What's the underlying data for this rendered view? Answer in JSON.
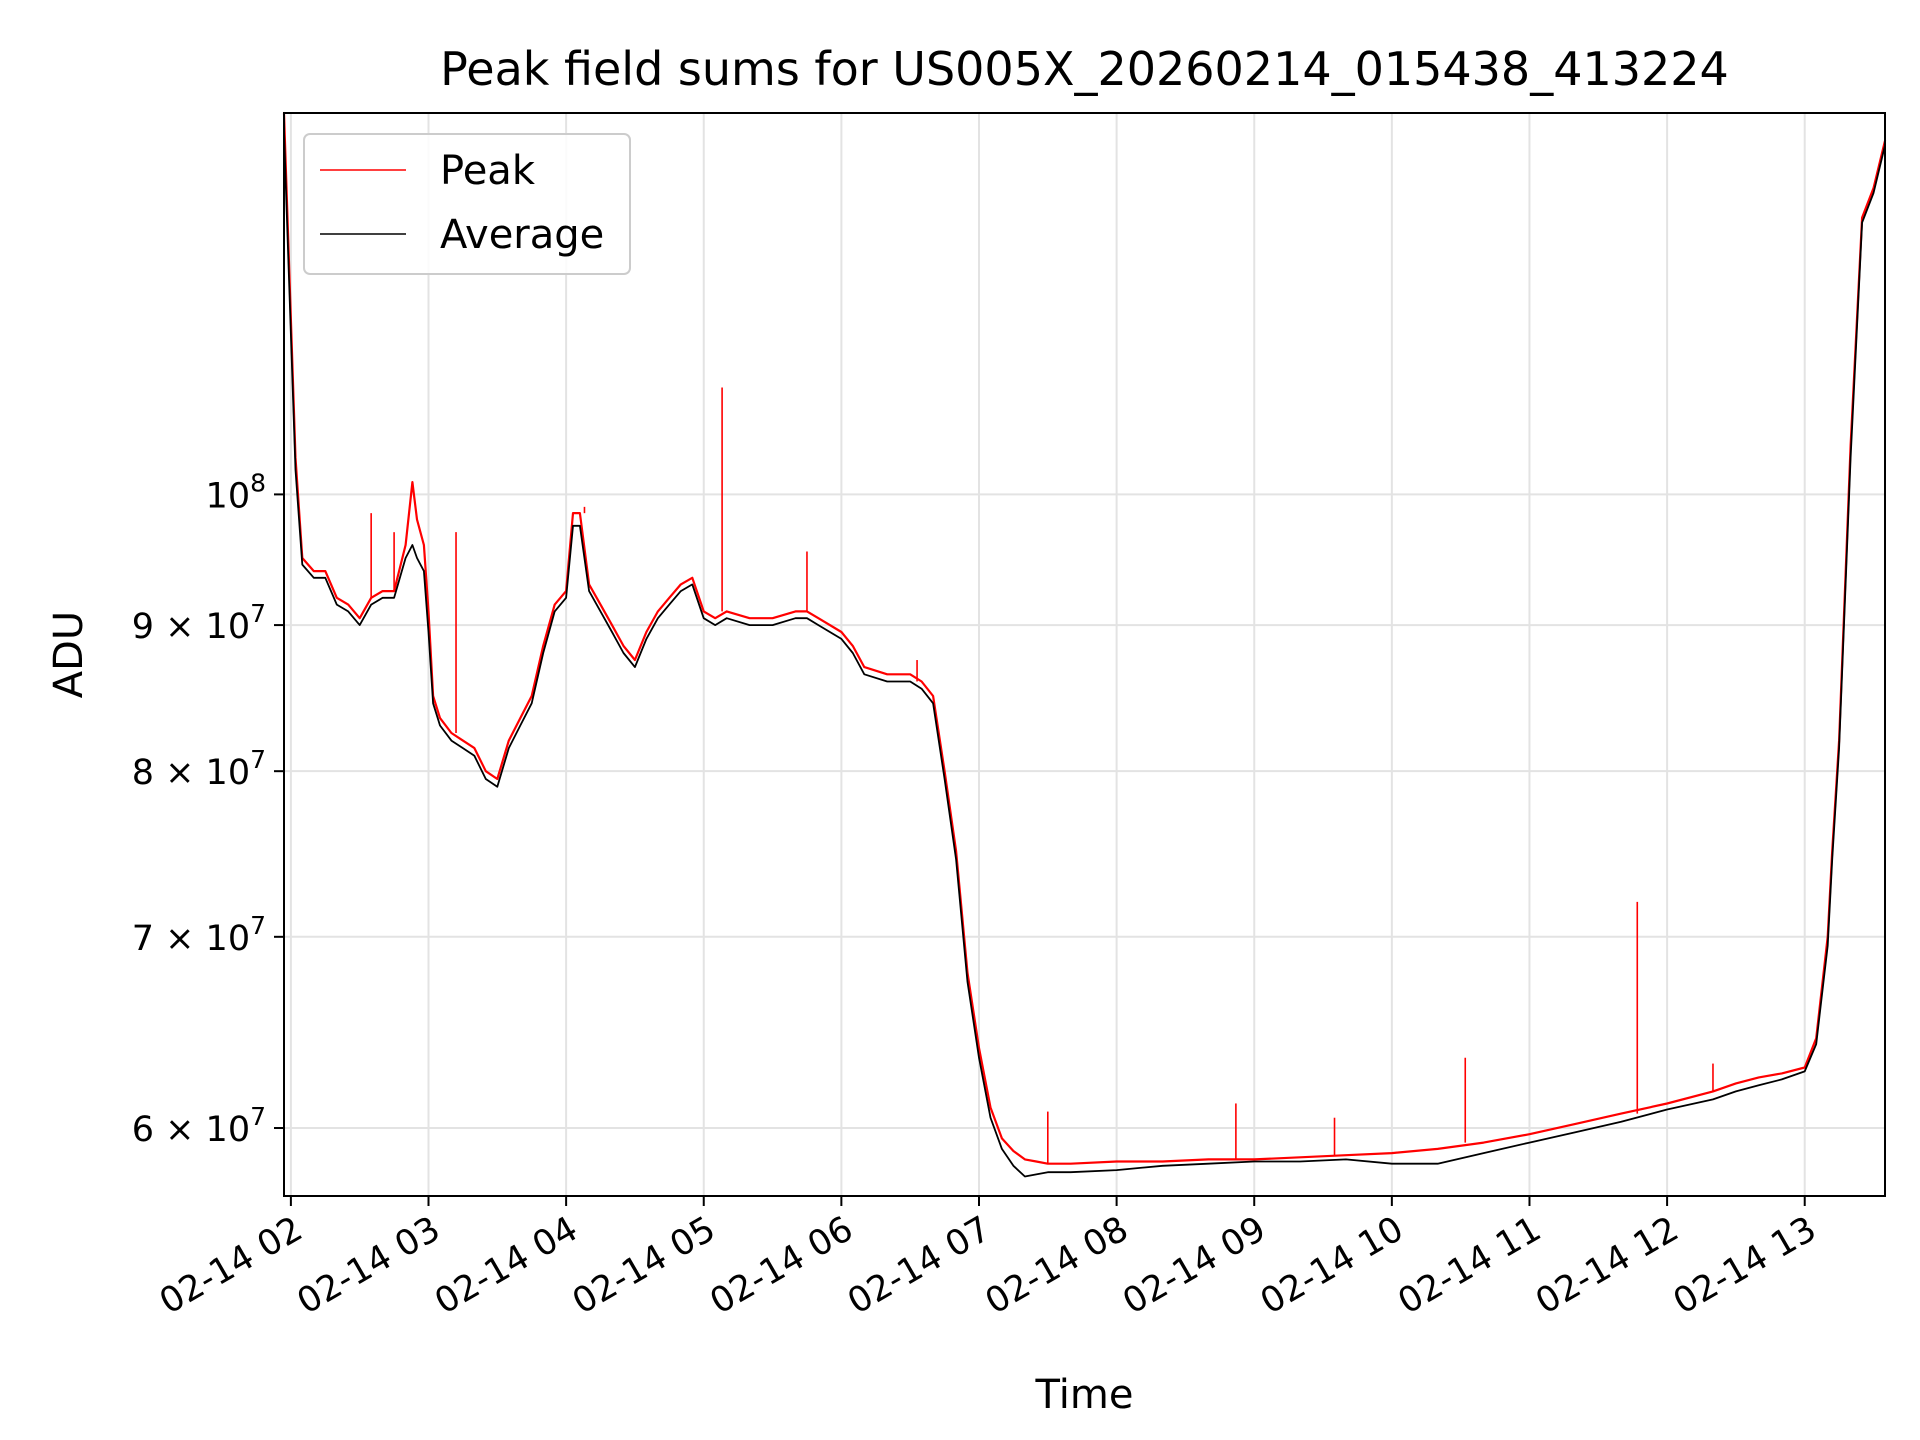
{
  "chart_data": {
    "type": "line",
    "title": "Peak field sums for US005X_20260214_015438_413224",
    "xlabel": "Time",
    "ylabel": "ADU",
    "y_scale": "log",
    "grid": true,
    "legend_position": "top-left",
    "x_domain": [
      "02-14 01:57",
      "02-14 13:35"
    ],
    "ylim": [
      56800000,
      136000000
    ],
    "x_ticks": [
      {
        "value": "02-14 02:00",
        "label": "02-14 02"
      },
      {
        "value": "02-14 03:00",
        "label": "02-14 03"
      },
      {
        "value": "02-14 04:00",
        "label": "02-14 04"
      },
      {
        "value": "02-14 05:00",
        "label": "02-14 05"
      },
      {
        "value": "02-14 06:00",
        "label": "02-14 06"
      },
      {
        "value": "02-14 07:00",
        "label": "02-14 07"
      },
      {
        "value": "02-14 08:00",
        "label": "02-14 08"
      },
      {
        "value": "02-14 09:00",
        "label": "02-14 09"
      },
      {
        "value": "02-14 10:00",
        "label": "02-14 10"
      },
      {
        "value": "02-14 11:00",
        "label": "02-14 11"
      },
      {
        "value": "02-14 12:00",
        "label": "02-14 12"
      },
      {
        "value": "02-14 13:00",
        "label": "02-14 13"
      }
    ],
    "y_ticks": [
      {
        "value": 60000000,
        "mantissa": "6",
        "exponent": "7"
      },
      {
        "value": 70000000,
        "mantissa": "7",
        "exponent": "7"
      },
      {
        "value": 80000000,
        "mantissa": "8",
        "exponent": "7"
      },
      {
        "value": 90000000,
        "mantissa": "9",
        "exponent": "7"
      },
      {
        "value": 100000000,
        "mantissa": "",
        "exponent": "8"
      }
    ],
    "series": [
      {
        "name": "Peak",
        "color": "#ff0000",
        "x": [
          "02-14 01:57",
          "02-14 02:02",
          "02-14 02:05",
          "02-14 02:10",
          "02-14 02:15",
          "02-14 02:20",
          "02-14 02:25",
          "02-14 02:30",
          "02-14 02:35",
          "02-14 02:40",
          "02-14 02:45",
          "02-14 02:50",
          "02-14 02:53",
          "02-14 02:55",
          "02-14 02:58",
          "02-14 03:00",
          "02-14 03:02",
          "02-14 03:05",
          "02-14 03:10",
          "02-14 03:15",
          "02-14 03:20",
          "02-14 03:25",
          "02-14 03:30",
          "02-14 03:35",
          "02-14 03:40",
          "02-14 03:45",
          "02-14 03:50",
          "02-14 03:55",
          "02-14 04:00",
          "02-14 04:03",
          "02-14 04:06",
          "02-14 04:10",
          "02-14 04:15",
          "02-14 04:20",
          "02-14 04:25",
          "02-14 04:30",
          "02-14 04:35",
          "02-14 04:40",
          "02-14 04:45",
          "02-14 04:50",
          "02-14 04:55",
          "02-14 05:00",
          "02-14 05:05",
          "02-14 05:10",
          "02-14 05:20",
          "02-14 05:30",
          "02-14 05:40",
          "02-14 05:45",
          "02-14 05:50",
          "02-14 06:00",
          "02-14 06:05",
          "02-14 06:10",
          "02-14 06:20",
          "02-14 06:30",
          "02-14 06:35",
          "02-14 06:40",
          "02-14 06:45",
          "02-14 06:50",
          "02-14 06:55",
          "02-14 07:00",
          "02-14 07:05",
          "02-14 07:10",
          "02-14 07:15",
          "02-14 07:20",
          "02-14 07:25",
          "02-14 07:30",
          "02-14 07:40",
          "02-14 08:00",
          "02-14 08:20",
          "02-14 08:40",
          "02-14 09:00",
          "02-14 09:20",
          "02-14 09:40",
          "02-14 10:00",
          "02-14 10:20",
          "02-14 10:40",
          "02-14 11:00",
          "02-14 11:20",
          "02-14 11:40",
          "02-14 12:00",
          "02-14 12:20",
          "02-14 12:30",
          "02-14 12:40",
          "02-14 12:50",
          "02-14 13:00",
          "02-14 13:05",
          "02-14 13:10",
          "02-14 13:12",
          "02-14 13:15",
          "02-14 13:20",
          "02-14 13:25",
          "02-14 13:30",
          "02-14 13:35"
        ],
        "y": [
          136000000,
          103000000,
          95000000,
          94000000,
          94000000,
          92000000,
          91500000,
          90500000,
          92000000,
          92500000,
          92500000,
          96000000,
          101000000,
          98000000,
          96000000,
          91000000,
          85000000,
          83500000,
          82500000,
          82000000,
          81500000,
          80000000,
          79500000,
          82000000,
          83500000,
          85000000,
          88500000,
          91500000,
          92500000,
          98500000,
          98500000,
          93000000,
          91500000,
          90000000,
          88500000,
          87500000,
          89500000,
          91000000,
          92000000,
          93000000,
          93500000,
          91000000,
          90500000,
          91000000,
          90500000,
          90500000,
          91000000,
          91000000,
          90500000,
          89500000,
          88500000,
          87000000,
          86500000,
          86500000,
          86000000,
          85000000,
          80000000,
          75000000,
          68000000,
          64000000,
          61000000,
          59500000,
          58900000,
          58500000,
          58400000,
          58300000,
          58300000,
          58400000,
          58400000,
          58500000,
          58500000,
          58600000,
          58700000,
          58800000,
          59000000,
          59300000,
          59700000,
          60200000,
          60700000,
          61200000,
          61800000,
          62200000,
          62500000,
          62700000,
          63000000,
          64500000,
          70000000,
          75000000,
          82000000,
          104000000,
          125000000,
          128000000,
          133000000
        ]
      },
      {
        "name": "Average",
        "color": "#000000",
        "x": [
          "02-14 01:57",
          "02-14 02:02",
          "02-14 02:05",
          "02-14 02:10",
          "02-14 02:15",
          "02-14 02:20",
          "02-14 02:25",
          "02-14 02:30",
          "02-14 02:35",
          "02-14 02:40",
          "02-14 02:45",
          "02-14 02:50",
          "02-14 02:53",
          "02-14 02:55",
          "02-14 02:58",
          "02-14 03:00",
          "02-14 03:02",
          "02-14 03:05",
          "02-14 03:10",
          "02-14 03:15",
          "02-14 03:20",
          "02-14 03:25",
          "02-14 03:30",
          "02-14 03:35",
          "02-14 03:40",
          "02-14 03:45",
          "02-14 03:50",
          "02-14 03:55",
          "02-14 04:00",
          "02-14 04:03",
          "02-14 04:06",
          "02-14 04:10",
          "02-14 04:15",
          "02-14 04:20",
          "02-14 04:25",
          "02-14 04:30",
          "02-14 04:35",
          "02-14 04:40",
          "02-14 04:45",
          "02-14 04:50",
          "02-14 04:55",
          "02-14 05:00",
          "02-14 05:05",
          "02-14 05:10",
          "02-14 05:20",
          "02-14 05:30",
          "02-14 05:40",
          "02-14 05:45",
          "02-14 05:50",
          "02-14 06:00",
          "02-14 06:05",
          "02-14 06:10",
          "02-14 06:20",
          "02-14 06:30",
          "02-14 06:35",
          "02-14 06:40",
          "02-14 06:45",
          "02-14 06:50",
          "02-14 06:55",
          "02-14 07:00",
          "02-14 07:05",
          "02-14 07:10",
          "02-14 07:15",
          "02-14 07:20",
          "02-14 07:25",
          "02-14 07:30",
          "02-14 07:40",
          "02-14 08:00",
          "02-14 08:20",
          "02-14 08:40",
          "02-14 09:00",
          "02-14 09:20",
          "02-14 09:40",
          "02-14 10:00",
          "02-14 10:20",
          "02-14 10:40",
          "02-14 11:00",
          "02-14 11:20",
          "02-14 11:40",
          "02-14 12:00",
          "02-14 12:20",
          "02-14 12:30",
          "02-14 12:40",
          "02-14 12:50",
          "02-14 13:00",
          "02-14 13:05",
          "02-14 13:10",
          "02-14 13:12",
          "02-14 13:15",
          "02-14 13:20",
          "02-14 13:25",
          "02-14 13:30",
          "02-14 13:35"
        ],
        "y": [
          134000000,
          102000000,
          94500000,
          93500000,
          93500000,
          91500000,
          91000000,
          90000000,
          91500000,
          92000000,
          92000000,
          95000000,
          96000000,
          95000000,
          94000000,
          89500000,
          84500000,
          83000000,
          82000000,
          81500000,
          81000000,
          79500000,
          79000000,
          81500000,
          83000000,
          84500000,
          88000000,
          91000000,
          92000000,
          97500000,
          97500000,
          92500000,
          91000000,
          89500000,
          88000000,
          87000000,
          89000000,
          90500000,
          91500000,
          92500000,
          93000000,
          90500000,
          90000000,
          90500000,
          90000000,
          90000000,
          90500000,
          90500000,
          90000000,
          89000000,
          88000000,
          86500000,
          86000000,
          86000000,
          85500000,
          84500000,
          79500000,
          74500000,
          67500000,
          63500000,
          60500000,
          59000000,
          58200000,
          57700000,
          57800000,
          57900000,
          57900000,
          58000000,
          58200000,
          58300000,
          58400000,
          58400000,
          58500000,
          58300000,
          58300000,
          58800000,
          59300000,
          59800000,
          60300000,
          60900000,
          61400000,
          61800000,
          62100000,
          62400000,
          62800000,
          64200000,
          69500000,
          74500000,
          81500000,
          103000000,
          124500000,
          127500000,
          132500000
        ]
      }
    ],
    "spikes": [
      {
        "series": "Peak",
        "x": "02-14 02:35",
        "y": 98500000
      },
      {
        "series": "Peak",
        "x": "02-14 02:45",
        "y": 97000000
      },
      {
        "series": "Peak",
        "x": "02-14 03:12",
        "y": 97000000
      },
      {
        "series": "Peak",
        "x": "02-14 04:08",
        "y": 99000000
      },
      {
        "series": "Peak",
        "x": "02-14 05:08",
        "y": 109000000
      },
      {
        "series": "Peak",
        "x": "02-14 05:45",
        "y": 95500000
      },
      {
        "series": "Peak",
        "x": "02-14 06:33",
        "y": 87500000
      },
      {
        "series": "Peak",
        "x": "02-14 07:30",
        "y": 60800000
      },
      {
        "series": "Peak",
        "x": "02-14 08:52",
        "y": 61200000
      },
      {
        "series": "Peak",
        "x": "02-14 09:35",
        "y": 60500000
      },
      {
        "series": "Peak",
        "x": "02-14 10:32",
        "y": 63500000
      },
      {
        "series": "Peak",
        "x": "02-14 11:47",
        "y": 72000000
      },
      {
        "series": "Peak",
        "x": "02-14 12:20",
        "y": 63200000
      }
    ]
  }
}
